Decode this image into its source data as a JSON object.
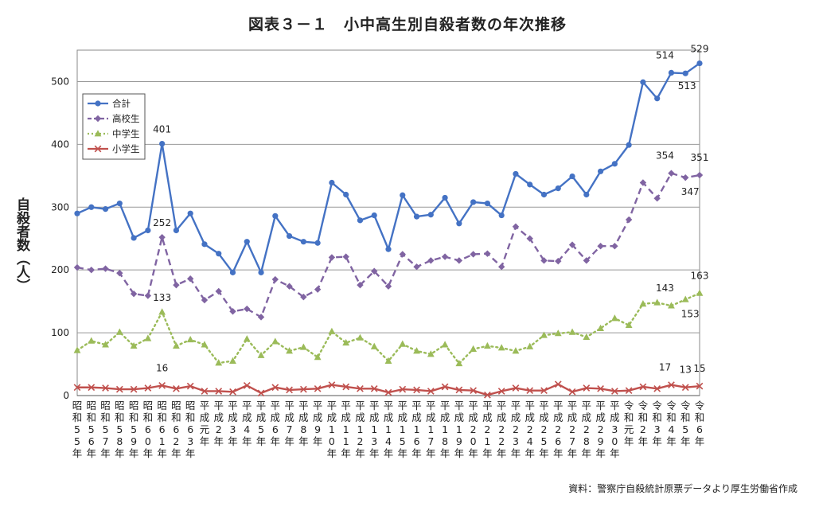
{
  "title": "図表３－１　小中高生別自殺者数の年次推移",
  "source": "資料：警察庁自殺統計原票データより厚生労働省作成",
  "chart_data": {
    "type": "line",
    "title": "図表３－１　小中高生別自殺者数の年次推移",
    "ylabel": "自殺者数（人）",
    "xlabel": "",
    "ylim": [
      0,
      550
    ],
    "yticks": [
      0,
      100,
      200,
      300,
      400,
      500
    ],
    "grid": true,
    "legend_position": "top-left",
    "categories": [
      "昭和55年",
      "昭和56年",
      "昭和57年",
      "昭和58年",
      "昭和59年",
      "昭和60年",
      "昭和61年",
      "昭和62年",
      "昭和63年",
      "平成元年",
      "平成2年",
      "平成3年",
      "平成4年",
      "平成5年",
      "平成6年",
      "平成7年",
      "平成8年",
      "平成9年",
      "平成10年",
      "平成11年",
      "平成12年",
      "平成13年",
      "平成14年",
      "平成15年",
      "平成16年",
      "平成17年",
      "平成18年",
      "平成19年",
      "平成20年",
      "平成21年",
      "平成22年",
      "平成23年",
      "平成24年",
      "平成25年",
      "平成26年",
      "平成27年",
      "平成28年",
      "平成29年",
      "平成30年",
      "令和元年",
      "令和2年",
      "令和3年",
      "令和4年",
      "令和5年",
      "令和6年"
    ],
    "series": [
      {
        "name": "合計",
        "color": "#4472c4",
        "style": "solid",
        "marker": "circle",
        "values": [
          290,
          300,
          297,
          306,
          251,
          263,
          401,
          263,
          290,
          241,
          226,
          196,
          245,
          196,
          286,
          254,
          245,
          243,
          339,
          320,
          279,
          287,
          233,
          319,
          285,
          288,
          315,
          274,
          308,
          306,
          287,
          353,
          336,
          320,
          330,
          349,
          320,
          357,
          369,
          399,
          499,
          473,
          514,
          513,
          529
        ]
      },
      {
        "name": "高校生",
        "color": "#8064a2",
        "style": "dashed",
        "marker": "diamond",
        "values": [
          204,
          200,
          202,
          195,
          162,
          159,
          252,
          176,
          186,
          152,
          166,
          134,
          138,
          125,
          185,
          174,
          157,
          169,
          220,
          221,
          176,
          198,
          174,
          225,
          205,
          215,
          221,
          215,
          225,
          226,
          205,
          269,
          250,
          215,
          214,
          240,
          215,
          238,
          238,
          280,
          339,
          314,
          354,
          347,
          351
        ]
      },
      {
        "name": "中学生",
        "color": "#9bbb59",
        "style": "dotted",
        "marker": "triangle",
        "values": [
          72,
          87,
          81,
          101,
          79,
          91,
          133,
          79,
          89,
          81,
          52,
          55,
          90,
          64,
          86,
          71,
          77,
          61,
          102,
          84,
          92,
          78,
          55,
          82,
          71,
          66,
          81,
          51,
          74,
          79,
          76,
          71,
          78,
          96,
          99,
          101,
          93,
          107,
          123,
          112,
          146,
          148,
          143,
          153,
          163
        ]
      },
      {
        "name": "小学生",
        "color": "#c0504d",
        "style": "solid",
        "marker": "x",
        "values": [
          13,
          13,
          12,
          10,
          10,
          12,
          16,
          11,
          15,
          7,
          7,
          6,
          16,
          4,
          13,
          9,
          10,
          11,
          17,
          14,
          11,
          11,
          5,
          10,
          9,
          7,
          14,
          9,
          8,
          1,
          7,
          12,
          8,
          8,
          18,
          6,
          12,
          11,
          7,
          8,
          14,
          11,
          17,
          13,
          15
        ]
      }
    ],
    "annotations": [
      {
        "series": "合計",
        "category": "昭和61年",
        "text": "401"
      },
      {
        "series": "高校生",
        "category": "昭和61年",
        "text": "252"
      },
      {
        "series": "中学生",
        "category": "昭和61年",
        "text": "133"
      },
      {
        "series": "小学生",
        "category": "昭和61年",
        "text": "16"
      },
      {
        "series": "合計",
        "category": "令和4年",
        "text": "514"
      },
      {
        "series": "合計",
        "category": "令和5年",
        "text": "513"
      },
      {
        "series": "合計",
        "category": "令和6年",
        "text": "529"
      },
      {
        "series": "高校生",
        "category": "令和4年",
        "text": "354"
      },
      {
        "series": "高校生",
        "category": "令和5年",
        "text": "347"
      },
      {
        "series": "高校生",
        "category": "令和6年",
        "text": "351"
      },
      {
        "series": "中学生",
        "category": "令和4年",
        "text": "143"
      },
      {
        "series": "中学生",
        "category": "令和5年",
        "text": "153"
      },
      {
        "series": "中学生",
        "category": "令和6年",
        "text": "163"
      },
      {
        "series": "小学生",
        "category": "令和4年",
        "text": "17"
      },
      {
        "series": "小学生",
        "category": "令和5年",
        "text": "13"
      },
      {
        "series": "小学生",
        "category": "令和6年",
        "text": "15"
      }
    ]
  }
}
